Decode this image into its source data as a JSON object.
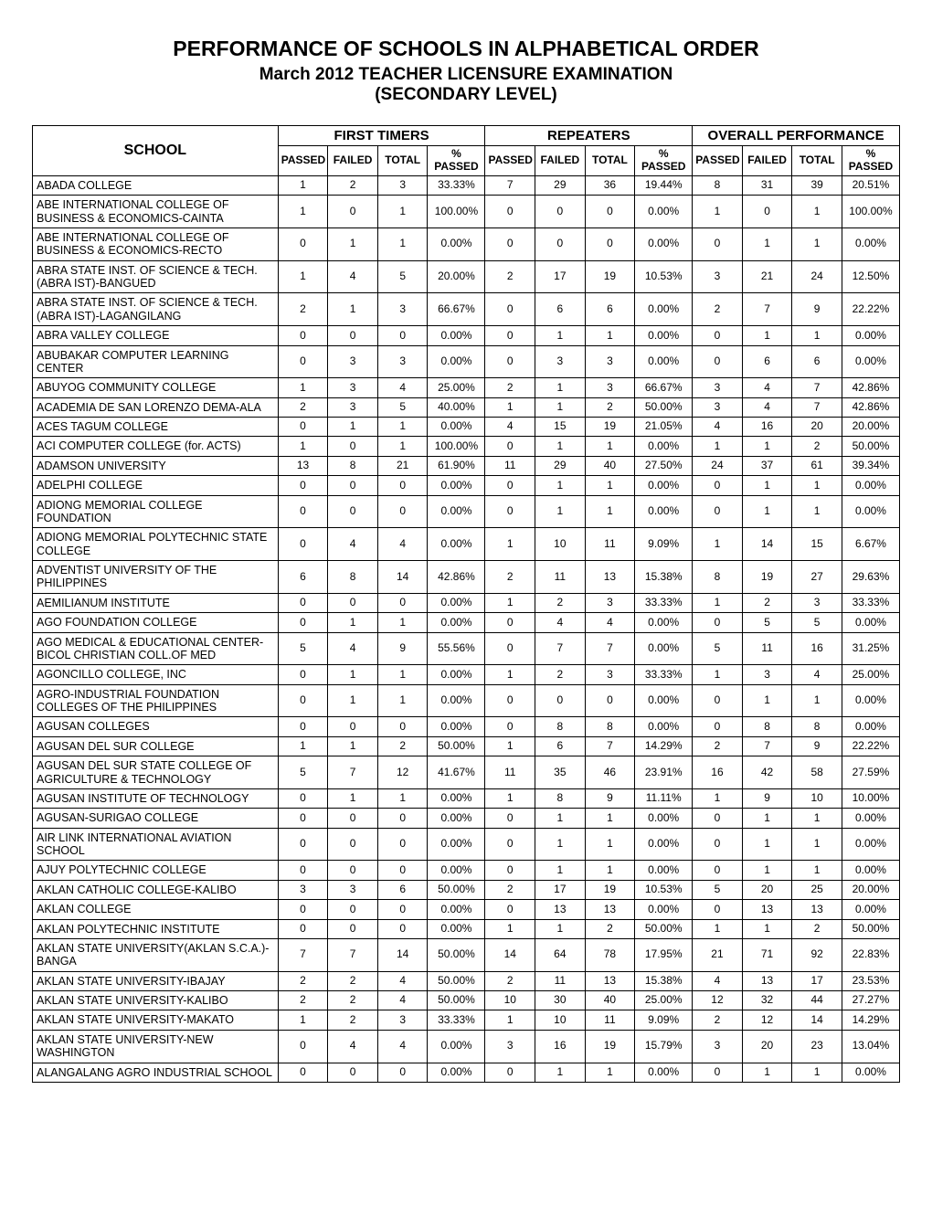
{
  "title": "PERFORMANCE OF SCHOOLS IN ALPHABETICAL ORDER",
  "subtitle1": "March 2012 TEACHER LICENSURE EXAMINATION",
  "subtitle2": "(SECONDARY LEVEL)",
  "headers": {
    "school": "SCHOOL",
    "groups": [
      "FIRST TIMERS",
      "REPEATERS",
      "OVERALL PERFORMANCE"
    ],
    "sub": [
      "PASSED",
      "FAILED",
      "TOTAL",
      "% PASSED"
    ]
  },
  "columns": {
    "schoolWidth": 256,
    "numWidth": 52,
    "pctWidth": 60
  },
  "style": {
    "titleFontSize": 23,
    "subtitleFontSize": 19,
    "headerFontSize": 12,
    "cellFontSize": 12,
    "borderColor": "#000000",
    "textColor": "#000000",
    "background": "#ffffff"
  },
  "rows": [
    {
      "school": "ABADA COLLEGE",
      "ft": [
        1,
        2,
        3,
        "33.33%"
      ],
      "rp": [
        7,
        29,
        36,
        "19.44%"
      ],
      "ov": [
        8,
        31,
        39,
        "20.51%"
      ]
    },
    {
      "school": "ABE INTERNATIONAL COLLEGE OF BUSINESS & ECONOMICS-CAINTA",
      "ft": [
        1,
        0,
        1,
        "100.00%"
      ],
      "rp": [
        0,
        0,
        0,
        "0.00%"
      ],
      "ov": [
        1,
        0,
        1,
        "100.00%"
      ]
    },
    {
      "school": "ABE INTERNATIONAL COLLEGE OF BUSINESS & ECONOMICS-RECTO",
      "ft": [
        0,
        1,
        1,
        "0.00%"
      ],
      "rp": [
        0,
        0,
        0,
        "0.00%"
      ],
      "ov": [
        0,
        1,
        1,
        "0.00%"
      ]
    },
    {
      "school": "ABRA STATE INST. OF SCIENCE & TECH.(ABRA IST)-BANGUED",
      "ft": [
        1,
        4,
        5,
        "20.00%"
      ],
      "rp": [
        2,
        17,
        19,
        "10.53%"
      ],
      "ov": [
        3,
        21,
        24,
        "12.50%"
      ]
    },
    {
      "school": "ABRA STATE INST. OF SCIENCE & TECH.(ABRA IST)-LAGANGILANG",
      "ft": [
        2,
        1,
        3,
        "66.67%"
      ],
      "rp": [
        0,
        6,
        6,
        "0.00%"
      ],
      "ov": [
        2,
        7,
        9,
        "22.22%"
      ]
    },
    {
      "school": "ABRA VALLEY COLLEGE",
      "ft": [
        0,
        0,
        0,
        "0.00%"
      ],
      "rp": [
        0,
        1,
        1,
        "0.00%"
      ],
      "ov": [
        0,
        1,
        1,
        "0.00%"
      ]
    },
    {
      "school": "ABUBAKAR COMPUTER LEARNING CENTER",
      "ft": [
        0,
        3,
        3,
        "0.00%"
      ],
      "rp": [
        0,
        3,
        3,
        "0.00%"
      ],
      "ov": [
        0,
        6,
        6,
        "0.00%"
      ]
    },
    {
      "school": "ABUYOG COMMUNITY COLLEGE",
      "ft": [
        1,
        3,
        4,
        "25.00%"
      ],
      "rp": [
        2,
        1,
        3,
        "66.67%"
      ],
      "ov": [
        3,
        4,
        7,
        "42.86%"
      ]
    },
    {
      "school": "ACADEMIA DE SAN LORENZO DEMA-ALA",
      "ft": [
        2,
        3,
        5,
        "40.00%"
      ],
      "rp": [
        1,
        1,
        2,
        "50.00%"
      ],
      "ov": [
        3,
        4,
        7,
        "42.86%"
      ]
    },
    {
      "school": "ACES TAGUM COLLEGE",
      "ft": [
        0,
        1,
        1,
        "0.00%"
      ],
      "rp": [
        4,
        15,
        19,
        "21.05%"
      ],
      "ov": [
        4,
        16,
        20,
        "20.00%"
      ]
    },
    {
      "school": "ACI COMPUTER COLLEGE (for. ACTS)",
      "ft": [
        1,
        0,
        1,
        "100.00%"
      ],
      "rp": [
        0,
        1,
        1,
        "0.00%"
      ],
      "ov": [
        1,
        1,
        2,
        "50.00%"
      ]
    },
    {
      "school": "ADAMSON UNIVERSITY",
      "ft": [
        13,
        8,
        21,
        "61.90%"
      ],
      "rp": [
        11,
        29,
        40,
        "27.50%"
      ],
      "ov": [
        24,
        37,
        61,
        "39.34%"
      ]
    },
    {
      "school": "ADELPHI COLLEGE",
      "ft": [
        0,
        0,
        0,
        "0.00%"
      ],
      "rp": [
        0,
        1,
        1,
        "0.00%"
      ],
      "ov": [
        0,
        1,
        1,
        "0.00%"
      ]
    },
    {
      "school": "ADIONG MEMORIAL COLLEGE FOUNDATION",
      "ft": [
        0,
        0,
        0,
        "0.00%"
      ],
      "rp": [
        0,
        1,
        1,
        "0.00%"
      ],
      "ov": [
        0,
        1,
        1,
        "0.00%"
      ]
    },
    {
      "school": "ADIONG MEMORIAL POLYTECHNIC STATE COLLEGE",
      "ft": [
        0,
        4,
        4,
        "0.00%"
      ],
      "rp": [
        1,
        10,
        11,
        "9.09%"
      ],
      "ov": [
        1,
        14,
        15,
        "6.67%"
      ]
    },
    {
      "school": "ADVENTIST UNIVERSITY OF THE PHILIPPINES",
      "ft": [
        6,
        8,
        14,
        "42.86%"
      ],
      "rp": [
        2,
        11,
        13,
        "15.38%"
      ],
      "ov": [
        8,
        19,
        27,
        "29.63%"
      ]
    },
    {
      "school": "AEMILIANUM INSTITUTE",
      "ft": [
        0,
        0,
        0,
        "0.00%"
      ],
      "rp": [
        1,
        2,
        3,
        "33.33%"
      ],
      "ov": [
        1,
        2,
        3,
        "33.33%"
      ]
    },
    {
      "school": "AGO FOUNDATION COLLEGE",
      "ft": [
        0,
        1,
        1,
        "0.00%"
      ],
      "rp": [
        0,
        4,
        4,
        "0.00%"
      ],
      "ov": [
        0,
        5,
        5,
        "0.00%"
      ]
    },
    {
      "school": "AGO MEDICAL & EDUCATIONAL CENTER-BICOL CHRISTIAN COLL.OF MED",
      "ft": [
        5,
        4,
        9,
        "55.56%"
      ],
      "rp": [
        0,
        7,
        7,
        "0.00%"
      ],
      "ov": [
        5,
        11,
        16,
        "31.25%"
      ]
    },
    {
      "school": "AGONCILLO COLLEGE, INC",
      "ft": [
        0,
        1,
        1,
        "0.00%"
      ],
      "rp": [
        1,
        2,
        3,
        "33.33%"
      ],
      "ov": [
        1,
        3,
        4,
        "25.00%"
      ]
    },
    {
      "school": "AGRO-INDUSTRIAL FOUNDATION COLLEGES OF THE PHILIPPINES",
      "ft": [
        0,
        1,
        1,
        "0.00%"
      ],
      "rp": [
        0,
        0,
        0,
        "0.00%"
      ],
      "ov": [
        0,
        1,
        1,
        "0.00%"
      ]
    },
    {
      "school": "AGUSAN COLLEGES",
      "ft": [
        0,
        0,
        0,
        "0.00%"
      ],
      "rp": [
        0,
        8,
        8,
        "0.00%"
      ],
      "ov": [
        0,
        8,
        8,
        "0.00%"
      ]
    },
    {
      "school": "AGUSAN DEL SUR COLLEGE",
      "ft": [
        1,
        1,
        2,
        "50.00%"
      ],
      "rp": [
        1,
        6,
        7,
        "14.29%"
      ],
      "ov": [
        2,
        7,
        9,
        "22.22%"
      ]
    },
    {
      "school": "AGUSAN DEL SUR STATE COLLEGE OF AGRICULTURE & TECHNOLOGY",
      "ft": [
        5,
        7,
        12,
        "41.67%"
      ],
      "rp": [
        11,
        35,
        46,
        "23.91%"
      ],
      "ov": [
        16,
        42,
        58,
        "27.59%"
      ]
    },
    {
      "school": "AGUSAN INSTITUTE OF TECHNOLOGY",
      "ft": [
        0,
        1,
        1,
        "0.00%"
      ],
      "rp": [
        1,
        8,
        9,
        "11.11%"
      ],
      "ov": [
        1,
        9,
        10,
        "10.00%"
      ]
    },
    {
      "school": "AGUSAN-SURIGAO COLLEGE",
      "ft": [
        0,
        0,
        0,
        "0.00%"
      ],
      "rp": [
        0,
        1,
        1,
        "0.00%"
      ],
      "ov": [
        0,
        1,
        1,
        "0.00%"
      ]
    },
    {
      "school": "AIR LINK INTERNATIONAL AVIATION SCHOOL",
      "ft": [
        0,
        0,
        0,
        "0.00%"
      ],
      "rp": [
        0,
        1,
        1,
        "0.00%"
      ],
      "ov": [
        0,
        1,
        1,
        "0.00%"
      ]
    },
    {
      "school": "AJUY POLYTECHNIC COLLEGE",
      "ft": [
        0,
        0,
        0,
        "0.00%"
      ],
      "rp": [
        0,
        1,
        1,
        "0.00%"
      ],
      "ov": [
        0,
        1,
        1,
        "0.00%"
      ]
    },
    {
      "school": "AKLAN CATHOLIC COLLEGE-KALIBO",
      "ft": [
        3,
        3,
        6,
        "50.00%"
      ],
      "rp": [
        2,
        17,
        19,
        "10.53%"
      ],
      "ov": [
        5,
        20,
        25,
        "20.00%"
      ]
    },
    {
      "school": "AKLAN COLLEGE",
      "ft": [
        0,
        0,
        0,
        "0.00%"
      ],
      "rp": [
        0,
        13,
        13,
        "0.00%"
      ],
      "ov": [
        0,
        13,
        13,
        "0.00%"
      ]
    },
    {
      "school": "AKLAN POLYTECHNIC INSTITUTE",
      "ft": [
        0,
        0,
        0,
        "0.00%"
      ],
      "rp": [
        1,
        1,
        2,
        "50.00%"
      ],
      "ov": [
        1,
        1,
        2,
        "50.00%"
      ]
    },
    {
      "school": "AKLAN STATE UNIVERSITY(AKLAN S.C.A.)-BANGA",
      "ft": [
        7,
        7,
        14,
        "50.00%"
      ],
      "rp": [
        14,
        64,
        78,
        "17.95%"
      ],
      "ov": [
        21,
        71,
        92,
        "22.83%"
      ]
    },
    {
      "school": "AKLAN STATE UNIVERSITY-IBAJAY",
      "ft": [
        2,
        2,
        4,
        "50.00%"
      ],
      "rp": [
        2,
        11,
        13,
        "15.38%"
      ],
      "ov": [
        4,
        13,
        17,
        "23.53%"
      ]
    },
    {
      "school": "AKLAN STATE UNIVERSITY-KALIBO",
      "ft": [
        2,
        2,
        4,
        "50.00%"
      ],
      "rp": [
        10,
        30,
        40,
        "25.00%"
      ],
      "ov": [
        12,
        32,
        44,
        "27.27%"
      ]
    },
    {
      "school": "AKLAN STATE UNIVERSITY-MAKATO",
      "ft": [
        1,
        2,
        3,
        "33.33%"
      ],
      "rp": [
        1,
        10,
        11,
        "9.09%"
      ],
      "ov": [
        2,
        12,
        14,
        "14.29%"
      ]
    },
    {
      "school": "AKLAN STATE UNIVERSITY-NEW WASHINGTON",
      "ft": [
        0,
        4,
        4,
        "0.00%"
      ],
      "rp": [
        3,
        16,
        19,
        "15.79%"
      ],
      "ov": [
        3,
        20,
        23,
        "13.04%"
      ]
    },
    {
      "school": "ALANGALANG AGRO INDUSTRIAL SCHOOL",
      "ft": [
        0,
        0,
        0,
        "0.00%"
      ],
      "rp": [
        0,
        1,
        1,
        "0.00%"
      ],
      "ov": [
        0,
        1,
        1,
        "0.00%"
      ]
    }
  ]
}
